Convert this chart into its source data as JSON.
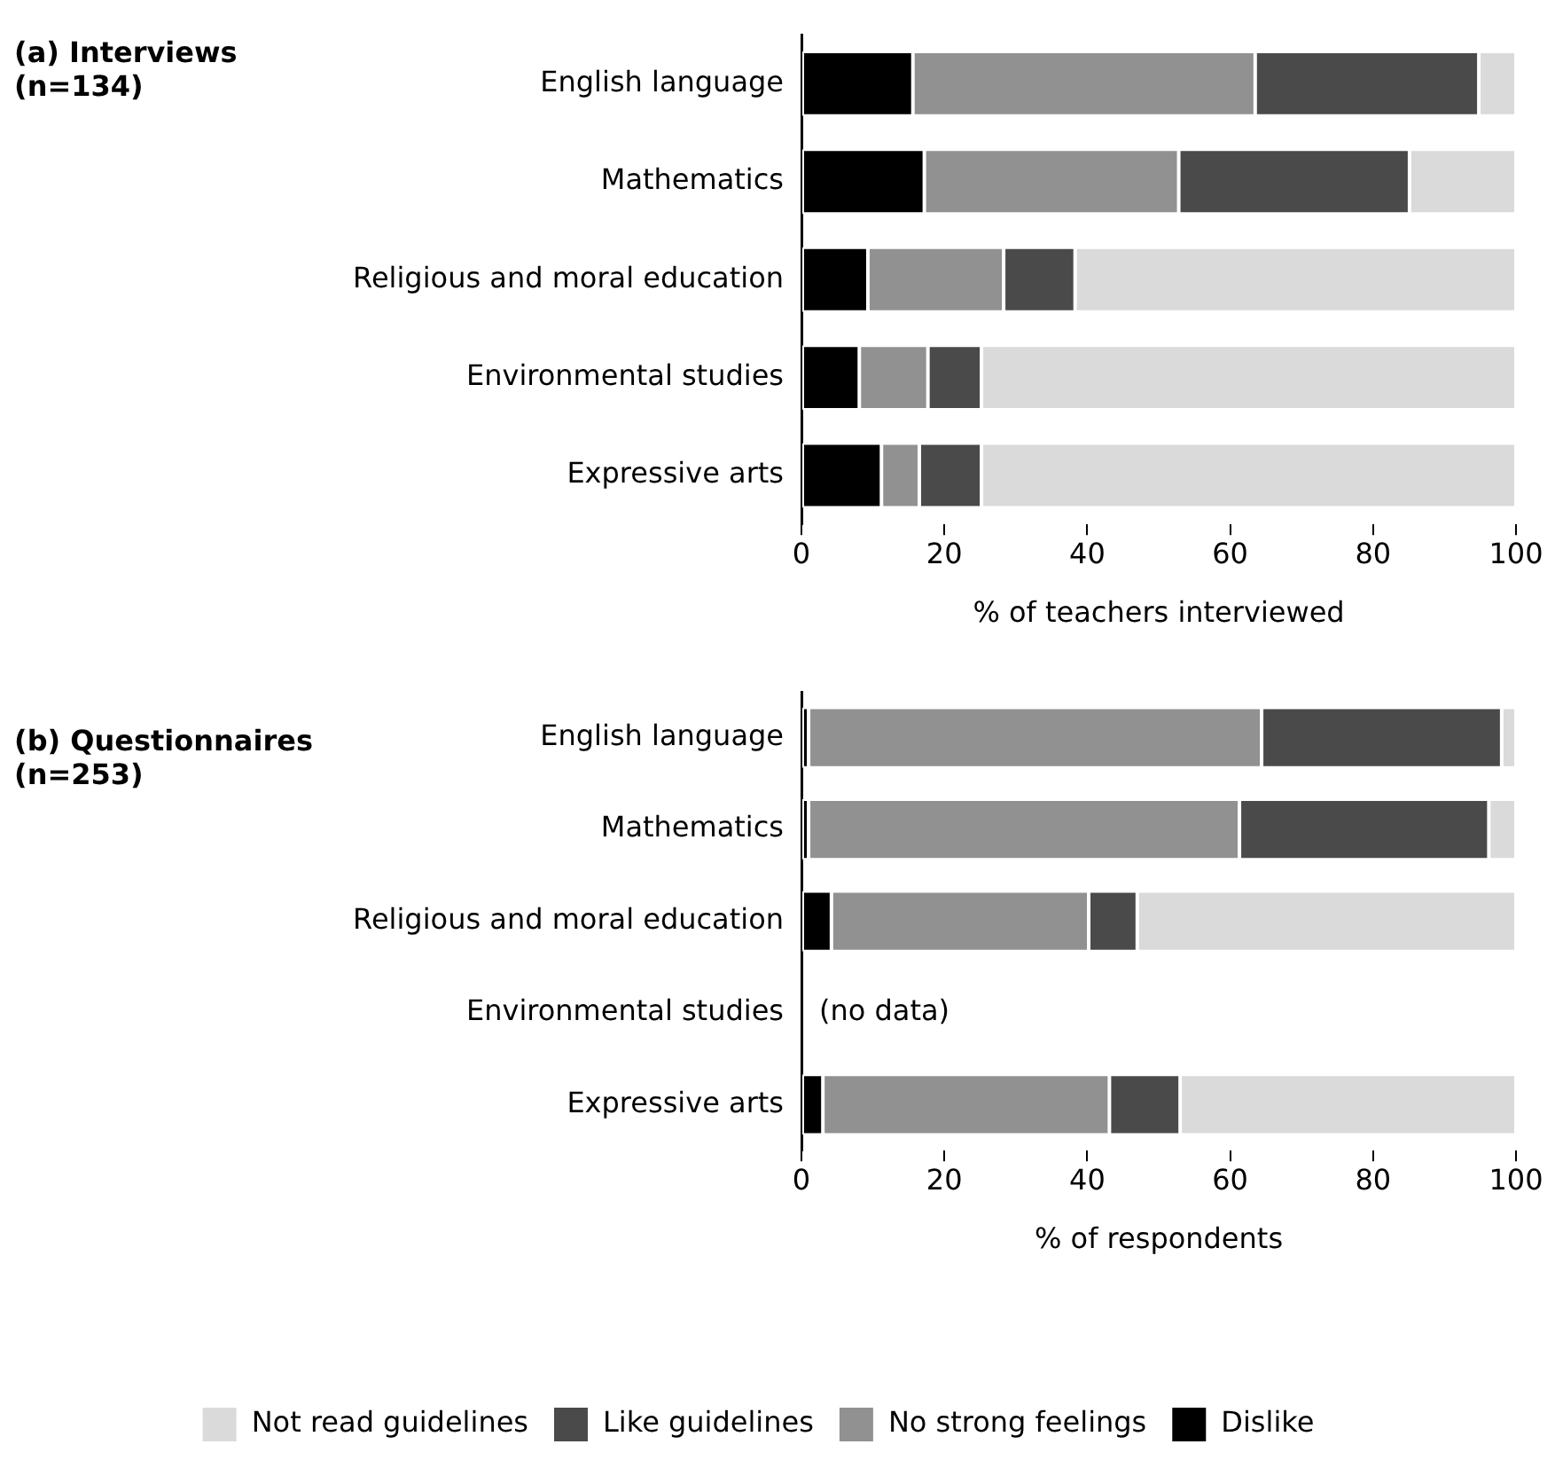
{
  "chart_data": [
    {
      "type": "bar",
      "orientation": "horizontal",
      "stacked": true,
      "title": "(a) Interviews\n(n=134)",
      "xlabel": "% of teachers interviewed",
      "categories": [
        "English language",
        "Mathematics",
        "Religious and moral education",
        "Environmental studies",
        "Expressive arts"
      ],
      "series": [
        {
          "color": "#000000",
          "values": [
            15.6,
            17.2,
            9.3,
            8.1,
            11.2
          ]
        },
        {
          "color": "#919191",
          "values": [
            47.9,
            35.6,
            19.0,
            9.6,
            5.3
          ]
        },
        {
          "color": "#4a4a4a",
          "values": [
            31.3,
            32.3,
            10.0,
            7.5,
            8.7
          ]
        },
        {
          "color": "#dadada",
          "values": [
            5.2,
            14.9,
            61.7,
            74.8,
            74.8
          ]
        }
      ],
      "xlim": [
        0,
        100
      ],
      "xticks": [
        0,
        20,
        40,
        60,
        80,
        100
      ],
      "grid": false,
      "legend": false
    },
    {
      "type": "bar",
      "orientation": "horizontal",
      "stacked": true,
      "title": "(b) Questionnaires\n(n=253)",
      "xlabel": "% of respondents",
      "categories": [
        "English language",
        "Mathematics",
        "Religious and moral education",
        "Environmental studies",
        "Expressive arts"
      ],
      "series": [
        {
          "name": "Dislike",
          "color": "#000000",
          "values": [
            1.0,
            1.0,
            4.2,
            null,
            3.0
          ]
        },
        {
          "name": "No strong feelings",
          "color": "#919191",
          "values": [
            63.4,
            60.3,
            36.0,
            null,
            40.1
          ]
        },
        {
          "name": "Like guidelines",
          "color": "#4a4a4a",
          "values": [
            33.6,
            34.9,
            6.8,
            null,
            9.9
          ]
        },
        {
          "name": "Not read guidelines",
          "color": "#dadada",
          "values": [
            2.0,
            3.8,
            53.0,
            null,
            47.0
          ]
        }
      ],
      "annotations": [
        "(no data)"
      ],
      "xlim": [
        0,
        100
      ],
      "xticks": [
        0,
        20,
        40,
        60,
        80,
        100
      ],
      "grid": false,
      "legend": "bottom"
    }
  ]
}
